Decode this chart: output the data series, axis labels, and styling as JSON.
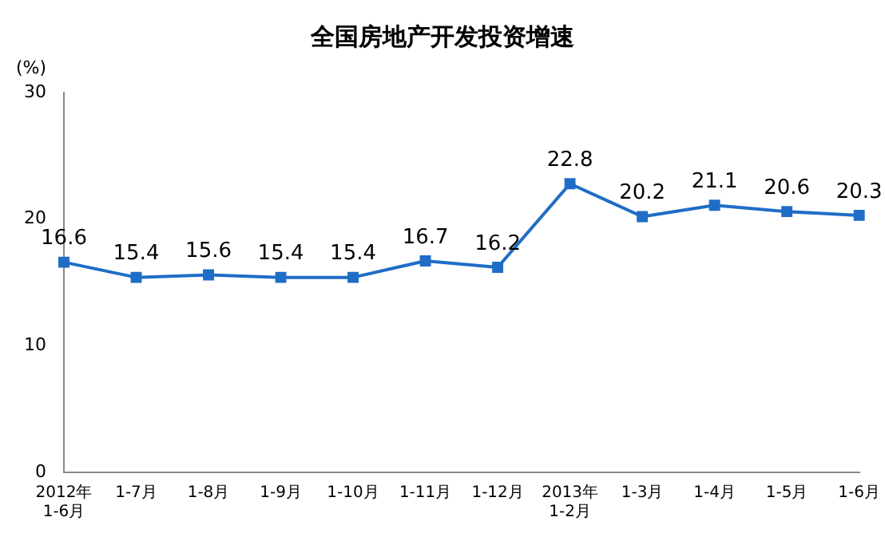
{
  "chart_data": {
    "type": "line",
    "title": "全国房地产开发投资增速",
    "ylabel": "(%)",
    "categories": [
      "2012年\n1-6月",
      "1-7月",
      "1-8月",
      "1-9月",
      "1-10月",
      "1-11月",
      "1-12月",
      "2013年\n1-2月",
      "1-3月",
      "1-4月",
      "1-5月",
      "1-6月"
    ],
    "series": [
      {
        "color": "#1f6dc6",
        "values": [
          16.6,
          15.4,
          15.6,
          15.4,
          15.4,
          16.7,
          16.2,
          22.8,
          20.2,
          21.1,
          20.6,
          20.3
        ]
      }
    ],
    "ylim": [
      0,
      30
    ],
    "yticks": [
      0,
      10,
      20,
      30
    ],
    "grid": false,
    "legend": false,
    "marker": "square",
    "line_style": "solid",
    "data_labels": true
  }
}
